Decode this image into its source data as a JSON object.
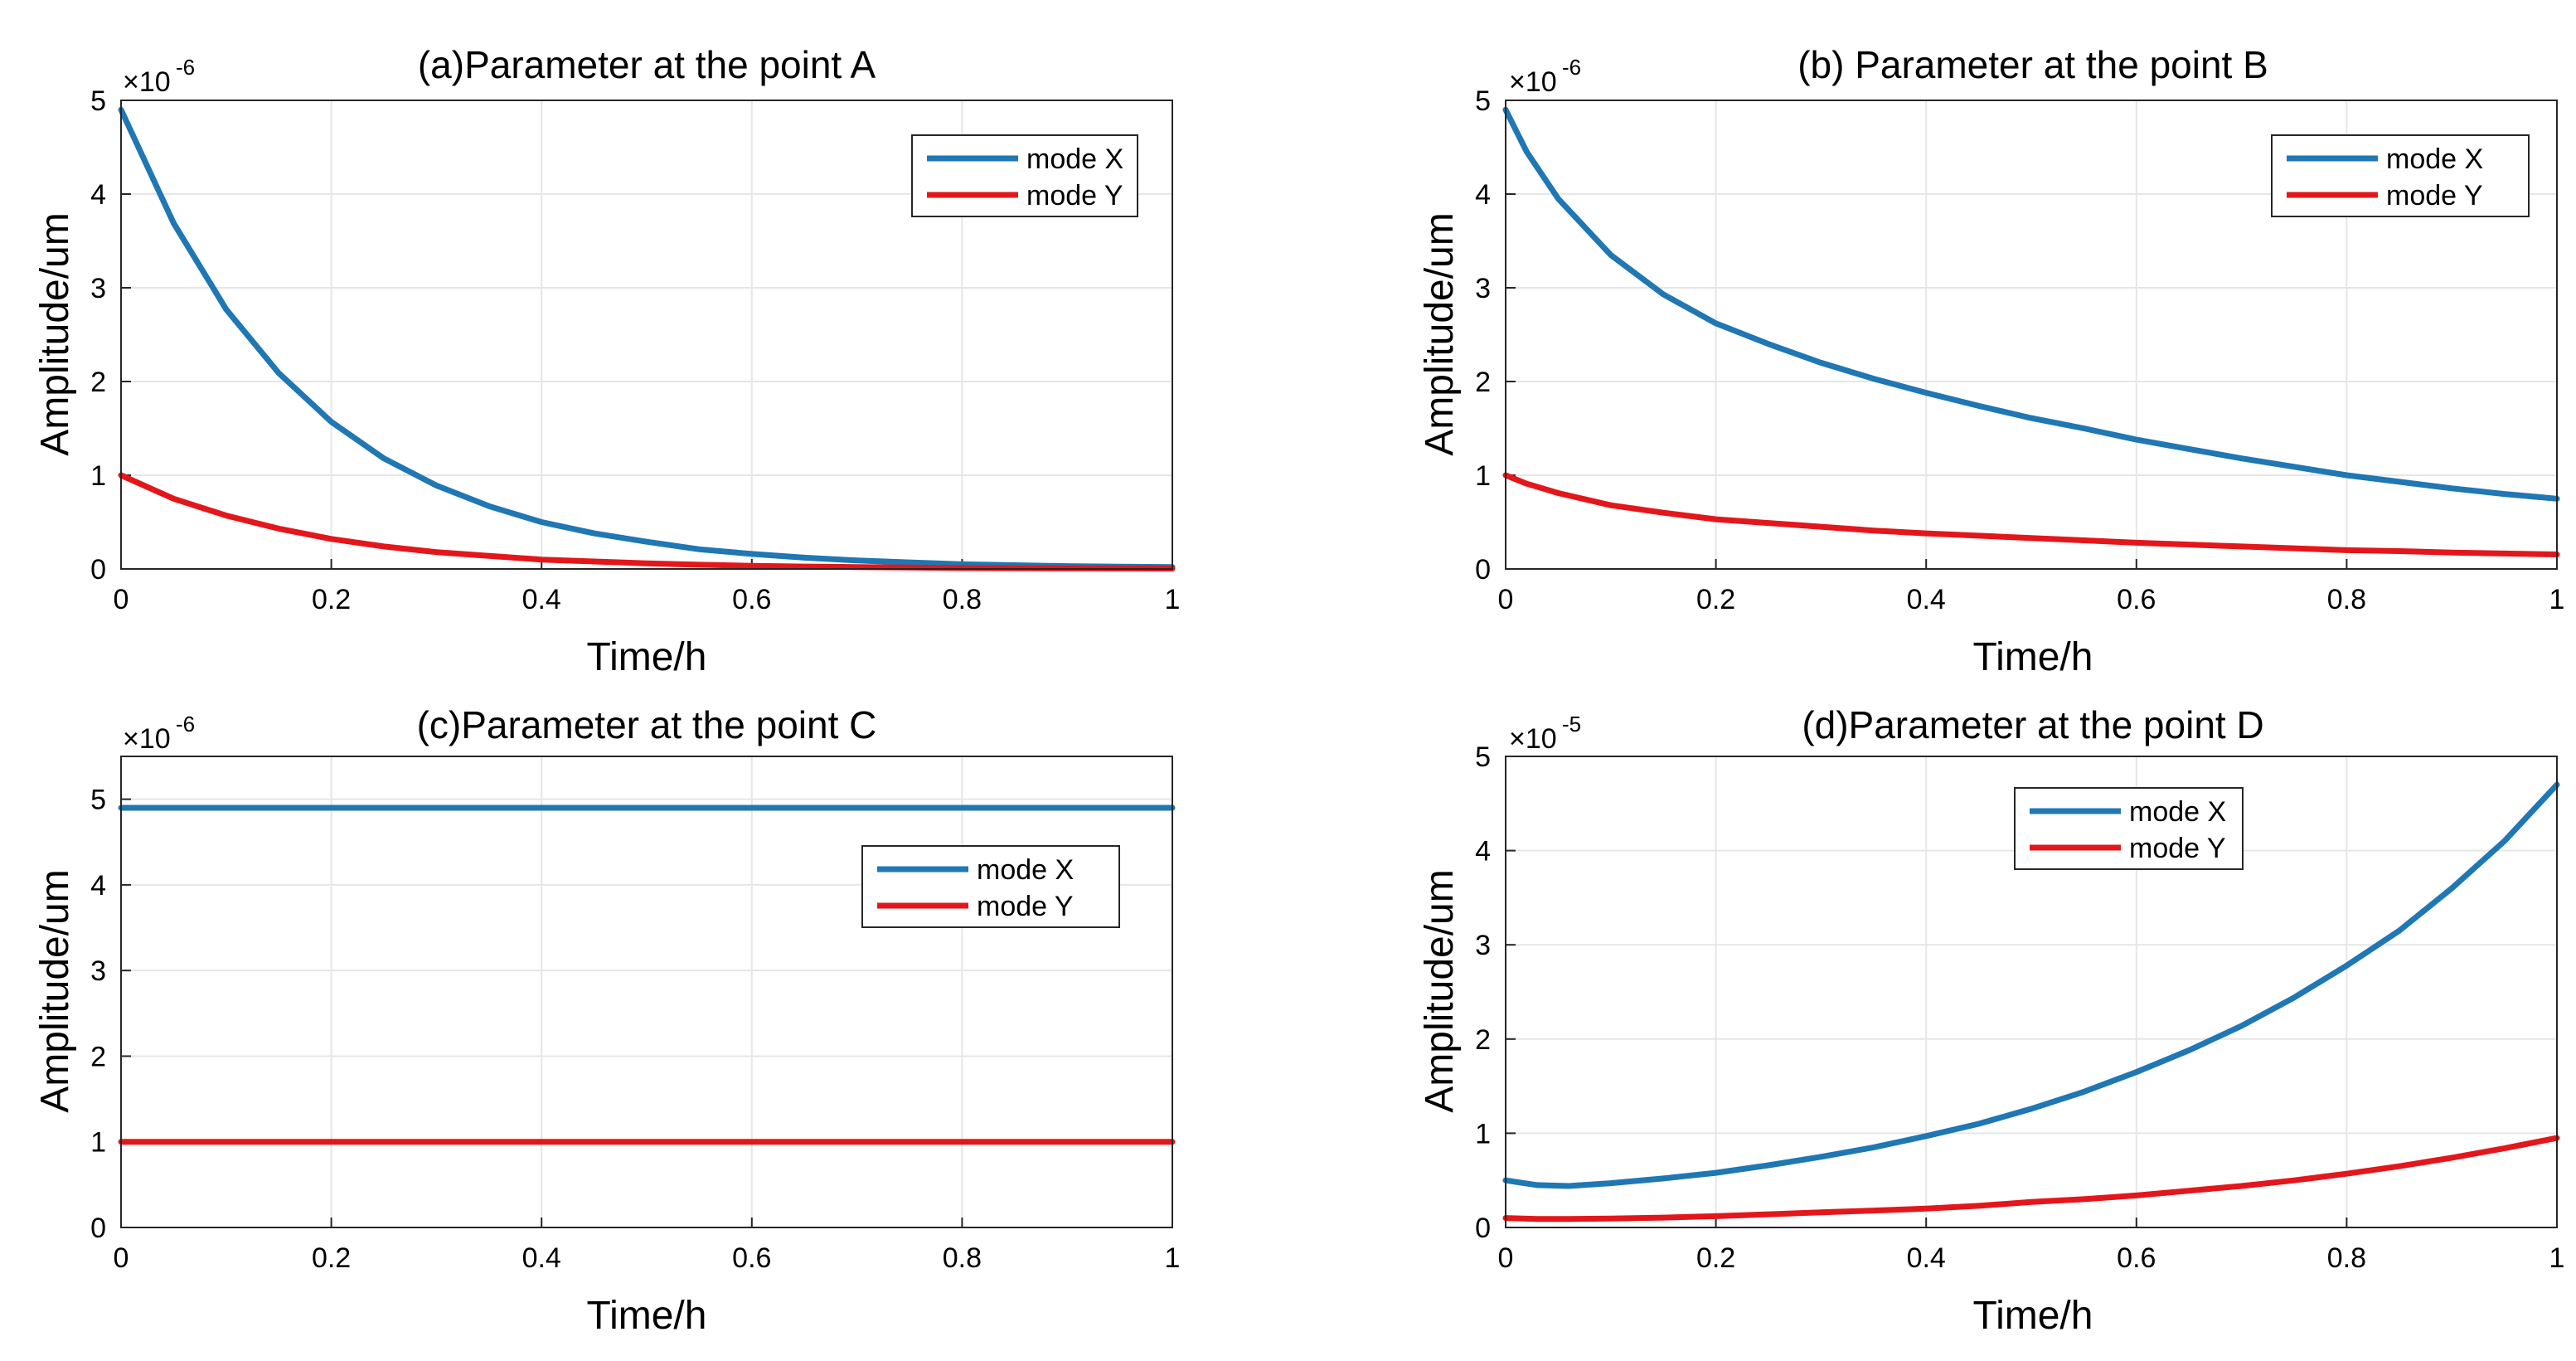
{
  "colors": {
    "modeX": "#1f77b4",
    "modeY": "#e3171b",
    "grid": "#e6e6e6",
    "axis": "#262626"
  },
  "chart_data": [
    {
      "type": "line",
      "title": "(a)Parameter at the point A",
      "xlabel": "Time/h",
      "ylabel": "Amplitude/um",
      "xlim": [
        0,
        1
      ],
      "ylim": [
        0,
        5
      ],
      "xticks": [
        "0",
        "0.2",
        "0.4",
        "0.6",
        "0.8",
        "1"
      ],
      "yticks": [
        "0",
        "1",
        "2",
        "3",
        "4",
        "5"
      ],
      "exponent_label": "×10",
      "exponent": "-6",
      "legend_position": "top-right",
      "series": [
        {
          "name": "mode X",
          "x": [
            0,
            0.05,
            0.1,
            0.15,
            0.2,
            0.25,
            0.3,
            0.35,
            0.4,
            0.45,
            0.5,
            0.55,
            0.6,
            0.65,
            0.7,
            0.75,
            0.8,
            0.85,
            0.9,
            0.95,
            1
          ],
          "y": [
            4.9,
            3.69,
            2.77,
            2.09,
            1.57,
            1.18,
            0.89,
            0.67,
            0.5,
            0.38,
            0.29,
            0.21,
            0.16,
            0.12,
            0.09,
            0.07,
            0.05,
            0.04,
            0.03,
            0.025,
            0.02
          ]
        },
        {
          "name": "mode Y",
          "x": [
            0,
            0.05,
            0.1,
            0.15,
            0.2,
            0.25,
            0.3,
            0.35,
            0.4,
            0.45,
            0.5,
            0.55,
            0.6,
            0.65,
            0.7,
            0.75,
            0.8,
            0.85,
            0.9,
            0.95,
            1
          ],
          "y": [
            1.0,
            0.75,
            0.57,
            0.43,
            0.32,
            0.24,
            0.18,
            0.14,
            0.1,
            0.08,
            0.06,
            0.045,
            0.034,
            0.026,
            0.02,
            0.015,
            0.01,
            0.008,
            0.006,
            0.005,
            0.004
          ]
        }
      ]
    },
    {
      "type": "line",
      "title": "(b) Parameter at the point B",
      "xlabel": "Time/h",
      "ylabel": "Amplitude/um",
      "xlim": [
        0,
        1
      ],
      "ylim": [
        0,
        5
      ],
      "xticks": [
        "0",
        "0.2",
        "0.4",
        "0.6",
        "0.8",
        "1"
      ],
      "yticks": [
        "0",
        "1",
        "2",
        "3",
        "4",
        "5"
      ],
      "exponent_label": "×10",
      "exponent": "-6",
      "legend_position": "top-right",
      "series": [
        {
          "name": "mode X",
          "x": [
            0,
            0.02,
            0.05,
            0.1,
            0.15,
            0.2,
            0.25,
            0.3,
            0.35,
            0.4,
            0.45,
            0.5,
            0.55,
            0.6,
            0.65,
            0.7,
            0.75,
            0.8,
            0.85,
            0.9,
            0.95,
            1
          ],
          "y": [
            4.9,
            4.45,
            3.95,
            3.35,
            2.93,
            2.62,
            2.4,
            2.2,
            2.03,
            1.88,
            1.74,
            1.61,
            1.5,
            1.38,
            1.28,
            1.18,
            1.09,
            1.0,
            0.93,
            0.86,
            0.8,
            0.75
          ]
        },
        {
          "name": "mode Y",
          "x": [
            0,
            0.02,
            0.05,
            0.1,
            0.15,
            0.2,
            0.25,
            0.3,
            0.35,
            0.4,
            0.45,
            0.5,
            0.55,
            0.6,
            0.65,
            0.7,
            0.75,
            0.8,
            0.85,
            0.9,
            0.95,
            1
          ],
          "y": [
            1.0,
            0.91,
            0.81,
            0.68,
            0.6,
            0.53,
            0.49,
            0.45,
            0.41,
            0.38,
            0.355,
            0.33,
            0.305,
            0.28,
            0.26,
            0.24,
            0.22,
            0.2,
            0.19,
            0.175,
            0.165,
            0.155
          ]
        }
      ]
    },
    {
      "type": "line",
      "title": "(c)Parameter at the point C",
      "xlabel": "Time/h",
      "ylabel": "Amplitude/um",
      "xlim": [
        0,
        1
      ],
      "ylim": [
        0,
        5.5
      ],
      "xticks": [
        "0",
        "0.2",
        "0.4",
        "0.6",
        "0.8",
        "1"
      ],
      "yticks": [
        "0",
        "1",
        "2",
        "3",
        "4",
        "5"
      ],
      "exponent_label": "×10",
      "exponent": "-6",
      "legend_position": "middle-right",
      "series": [
        {
          "name": "mode X",
          "x": [
            0,
            1
          ],
          "y": [
            4.9,
            4.9
          ]
        },
        {
          "name": "mode Y",
          "x": [
            0,
            1
          ],
          "y": [
            1.0,
            1.0
          ]
        }
      ]
    },
    {
      "type": "line",
      "title": "(d)Parameter at the point D",
      "xlabel": "Time/h",
      "ylabel": "Amplitude/um",
      "xlim": [
        0,
        1
      ],
      "ylim": [
        0,
        5
      ],
      "xticks": [
        "0",
        "0.2",
        "0.4",
        "0.6",
        "0.8",
        "1"
      ],
      "yticks": [
        "0",
        "1",
        "2",
        "3",
        "4",
        "5"
      ],
      "exponent_label": "×10",
      "exponent": "-5",
      "legend_position": "top-center",
      "series": [
        {
          "name": "mode X",
          "x": [
            0,
            0.03,
            0.06,
            0.1,
            0.15,
            0.2,
            0.25,
            0.3,
            0.35,
            0.4,
            0.45,
            0.5,
            0.55,
            0.6,
            0.65,
            0.7,
            0.75,
            0.8,
            0.85,
            0.9,
            0.95,
            1
          ],
          "y": [
            0.5,
            0.45,
            0.44,
            0.47,
            0.52,
            0.58,
            0.66,
            0.75,
            0.85,
            0.97,
            1.1,
            1.26,
            1.44,
            1.65,
            1.88,
            2.14,
            2.44,
            2.78,
            3.15,
            3.6,
            4.1,
            4.7
          ]
        },
        {
          "name": "mode Y",
          "x": [
            0,
            0.03,
            0.06,
            0.1,
            0.15,
            0.2,
            0.25,
            0.3,
            0.35,
            0.4,
            0.45,
            0.5,
            0.55,
            0.6,
            0.65,
            0.7,
            0.75,
            0.8,
            0.85,
            0.9,
            0.95,
            1
          ],
          "y": [
            0.1,
            0.09,
            0.09,
            0.095,
            0.105,
            0.12,
            0.14,
            0.16,
            0.18,
            0.2,
            0.23,
            0.27,
            0.3,
            0.34,
            0.39,
            0.44,
            0.5,
            0.57,
            0.65,
            0.74,
            0.84,
            0.95
          ]
        }
      ]
    }
  ]
}
